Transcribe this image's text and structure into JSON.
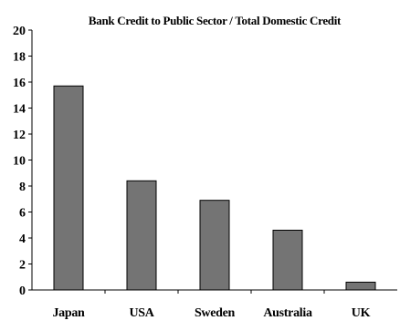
{
  "chart_data": {
    "type": "bar",
    "title": "Bank Credit to Public Sector / Total Domestic Credit",
    "xlabel": "",
    "ylabel": "",
    "categories": [
      "Japan",
      "USA",
      "Sweden",
      "Australia",
      "UK"
    ],
    "values": [
      15.7,
      8.4,
      6.9,
      4.6,
      0.6
    ],
    "ylim": [
      0,
      20
    ],
    "yticks": [
      "0",
      "2",
      "4",
      "6",
      "8",
      "10",
      "12",
      "14",
      "16",
      "18",
      "20"
    ],
    "grid": false,
    "legend": "none",
    "bar_color": "#747474",
    "bar_edge_color": "#000000"
  }
}
